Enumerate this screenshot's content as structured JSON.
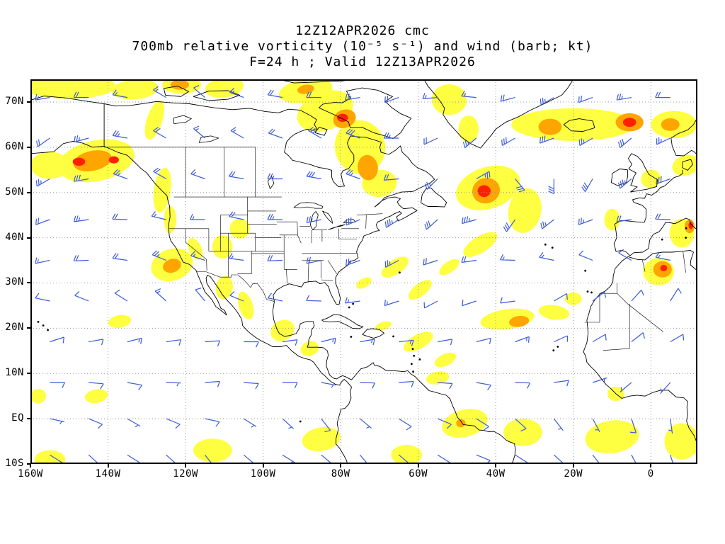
{
  "title": {
    "line1": "12Z12APR2026 cmc",
    "line2": "700mb relative vorticity (10⁻⁵ s⁻¹) and wind (barb; kt)",
    "line3": "F=24 h ; Valid 12Z13APR2026"
  },
  "axes": {
    "lat_ticks": [
      "70N",
      "60N",
      "50N",
      "40N",
      "30N",
      "20N",
      "10N",
      "EQ",
      "10S"
    ],
    "lat_values": [
      70,
      60,
      50,
      40,
      30,
      20,
      10,
      0,
      -10
    ],
    "lon_ticks": [
      "160W",
      "140W",
      "120W",
      "100W",
      "80W",
      "60W",
      "40W",
      "20W",
      "0"
    ],
    "lon_values": [
      -160,
      -140,
      -120,
      -100,
      -80,
      -60,
      -40,
      -20,
      0
    ]
  },
  "chart_data": {
    "type": "heatmap",
    "projection": "latlon",
    "lon_range": [
      -160,
      12
    ],
    "lat_range": [
      -10,
      75
    ],
    "model": "cmc",
    "init": "12Z12APR2026",
    "forecast": "F=24 h",
    "valid": "12Z13APR2026",
    "field": "700mb relative vorticity",
    "field_units": "10⁻⁵ s⁻¹",
    "wind": "barb",
    "wind_units": "kt",
    "grid_spacing_deg": {
      "lat": 10,
      "lon": 20
    },
    "colors": {
      "vort_low": "#FFFF42",
      "vort_mid": "#FFA500",
      "vort_high": "#FF2000",
      "barb": "#3A5BD9",
      "coast": "#000000",
      "grid": "#999999"
    },
    "vorticity_blobs": [
      [
        -150,
        73.5,
        12,
        2.8,
        0,
        "y"
      ],
      [
        -133,
        72.8,
        6,
        2.2,
        -5,
        "y"
      ],
      [
        -121,
        73.8,
        5,
        2,
        0,
        "y"
      ],
      [
        -110,
        73.2,
        5,
        2.2,
        -8,
        "y"
      ],
      [
        -89,
        72.5,
        7,
        2.6,
        -10,
        "y"
      ],
      [
        -143,
        57,
        10,
        4.5,
        -12,
        "y"
      ],
      [
        -155,
        56,
        5,
        3,
        0,
        "y"
      ],
      [
        -128,
        66,
        2,
        4.5,
        18,
        "y"
      ],
      [
        -126,
        50.5,
        2.2,
        5,
        8,
        "y"
      ],
      [
        -124,
        44,
        1.6,
        3,
        0,
        "y"
      ],
      [
        -123.5,
        34,
        5.5,
        3.5,
        -18,
        "y"
      ],
      [
        -117.5,
        37.5,
        1.6,
        2.6,
        -25,
        "y"
      ],
      [
        -106,
        42,
        2.6,
        2.2,
        0,
        "y"
      ],
      [
        -110.5,
        38,
        2.6,
        2.6,
        0,
        "y"
      ],
      [
        -110,
        29,
        2.2,
        2.6,
        10,
        "y"
      ],
      [
        -104.5,
        25,
        1.8,
        3.2,
        -18,
        "y"
      ],
      [
        -95,
        19.5,
        3.2,
        2.2,
        -28,
        "y"
      ],
      [
        -88,
        15.5,
        2.4,
        1.6,
        -20,
        "y"
      ],
      [
        -84,
        68,
        7.5,
        4.2,
        -22,
        "y"
      ],
      [
        -75,
        60,
        6.5,
        6,
        -18,
        "y"
      ],
      [
        -70,
        52,
        4.5,
        3,
        -5,
        "y"
      ],
      [
        -52,
        70.5,
        4.5,
        3.4,
        0,
        "y"
      ],
      [
        -47,
        64,
        2.6,
        3,
        0,
        "y"
      ],
      [
        -20,
        65,
        16,
        3.6,
        0,
        "y"
      ],
      [
        6,
        65,
        6,
        3,
        0,
        "y"
      ],
      [
        -42,
        51,
        8.5,
        4.6,
        -18,
        "y"
      ],
      [
        -32.5,
        46,
        4.2,
        5,
        12,
        "y"
      ],
      [
        -44,
        38.5,
        5,
        1.8,
        -32,
        "y"
      ],
      [
        -52,
        33.5,
        3,
        1.2,
        -35,
        "y"
      ],
      [
        -66,
        33.5,
        4,
        1.6,
        -33,
        "y"
      ],
      [
        -59.5,
        28.5,
        3.6,
        1.4,
        -38,
        "y"
      ],
      [
        -74,
        30,
        2.2,
        1,
        -30,
        "y"
      ],
      [
        -60,
        17,
        4.2,
        1.6,
        -28,
        "y"
      ],
      [
        -53,
        13,
        3,
        1.3,
        -25,
        "y"
      ],
      [
        -69,
        20.5,
        2.2,
        0.9,
        -18,
        "y"
      ],
      [
        -37,
        22,
        7,
        2.2,
        -8,
        "y"
      ],
      [
        -25,
        23.5,
        4,
        1.6,
        8,
        "y"
      ],
      [
        -20,
        26.5,
        2.2,
        1.4,
        0,
        "y"
      ],
      [
        8,
        41,
        3.2,
        3.2,
        0,
        "y"
      ],
      [
        2,
        32.5,
        4,
        3,
        0,
        "y"
      ],
      [
        9,
        56,
        3.6,
        2.2,
        -18,
        "y"
      ],
      [
        0,
        53,
        2.6,
        2,
        -15,
        "y"
      ],
      [
        -10,
        44,
        2,
        2.4,
        0,
        "y"
      ],
      [
        -137,
        21.5,
        3,
        1.4,
        -10,
        "y"
      ],
      [
        -158,
        5,
        2,
        1.6,
        0,
        "y"
      ],
      [
        -143,
        5,
        3,
        1.5,
        -10,
        "y"
      ],
      [
        -155,
        -9,
        4,
        2,
        0,
        "y"
      ],
      [
        -113,
        -7,
        5,
        2.6,
        0,
        "y"
      ],
      [
        -85,
        -4.5,
        5,
        2.6,
        -10,
        "y"
      ],
      [
        -63,
        -8,
        4,
        2.2,
        0,
        "y"
      ],
      [
        -48,
        -1,
        6,
        3,
        -14,
        "y"
      ],
      [
        -33,
        -3,
        5,
        3,
        0,
        "y"
      ],
      [
        -10,
        -4,
        7,
        3.6,
        -8,
        "y"
      ],
      [
        8,
        -5,
        4.5,
        4,
        0,
        "y"
      ],
      [
        -9,
        5.5,
        2.2,
        1.6,
        0,
        "y"
      ],
      [
        -55,
        9,
        3,
        1.4,
        -10,
        "y"
      ],
      [
        -144,
        57,
        5,
        2.2,
        -12,
        "o"
      ],
      [
        -121.5,
        73.8,
        2.4,
        1.1,
        0,
        "o"
      ],
      [
        -89,
        72.8,
        2.2,
        1,
        -10,
        "o"
      ],
      [
        -79,
        66.3,
        3,
        2,
        -20,
        "o"
      ],
      [
        -73,
        55.5,
        2.6,
        2.8,
        -8,
        "o"
      ],
      [
        -42.5,
        50.4,
        3.6,
        2.8,
        -18,
        "o"
      ],
      [
        -26,
        64.5,
        3,
        1.8,
        0,
        "o"
      ],
      [
        -5.5,
        65.5,
        3.6,
        2,
        0,
        "o"
      ],
      [
        5,
        65,
        2.4,
        1.4,
        0,
        "o"
      ],
      [
        3,
        33,
        2.4,
        1.8,
        0,
        "o"
      ],
      [
        -34,
        21.5,
        2.6,
        1.2,
        -8,
        "o"
      ],
      [
        -123.5,
        33.8,
        2.4,
        1.5,
        -18,
        "o"
      ],
      [
        -49,
        -1,
        1.2,
        0.9,
        0,
        "o"
      ],
      [
        10,
        42.5,
        1.3,
        1.5,
        0,
        "o"
      ],
      [
        -147.5,
        56.8,
        1.6,
        0.9,
        0,
        "r"
      ],
      [
        -138.5,
        57.2,
        1.3,
        0.8,
        0,
        "r"
      ],
      [
        -79.5,
        66.5,
        1.4,
        0.9,
        0,
        "r"
      ],
      [
        -43,
        50.3,
        1.7,
        1.3,
        0,
        "r"
      ],
      [
        -5.5,
        65.5,
        1.7,
        1,
        0,
        "r"
      ],
      [
        3.3,
        33.3,
        0.9,
        0.7,
        0,
        "r"
      ],
      [
        10.3,
        42.7,
        0.6,
        0.8,
        0,
        "r"
      ]
    ],
    "wind_barbs": [
      [
        -155,
        71,
        260,
        15
      ],
      [
        -145,
        71,
        270,
        20
      ],
      [
        -135,
        71,
        280,
        15
      ],
      [
        -125,
        71,
        300,
        15
      ],
      [
        -115,
        71,
        310,
        10
      ],
      [
        -105,
        71,
        290,
        15
      ],
      [
        -95,
        71,
        280,
        20
      ],
      [
        -85,
        71,
        270,
        20
      ],
      [
        -75,
        71,
        260,
        25
      ],
      [
        -65,
        71,
        250,
        20
      ],
      [
        -55,
        71,
        265,
        15
      ],
      [
        -45,
        71,
        275,
        15
      ],
      [
        -35,
        71,
        255,
        20
      ],
      [
        -25,
        71,
        240,
        25
      ],
      [
        -15,
        71,
        250,
        20
      ],
      [
        -5,
        71,
        260,
        25
      ],
      [
        5,
        71,
        270,
        20
      ],
      [
        -155,
        62,
        235,
        20
      ],
      [
        -145,
        62,
        255,
        25
      ],
      [
        -135,
        62,
        280,
        25
      ],
      [
        -125,
        62,
        300,
        20
      ],
      [
        -115,
        62,
        310,
        15
      ],
      [
        -105,
        62,
        300,
        15
      ],
      [
        -95,
        62,
        290,
        20
      ],
      [
        -85,
        62,
        300,
        25
      ],
      [
        -75,
        62,
        290,
        30
      ],
      [
        -65,
        62,
        270,
        25
      ],
      [
        -55,
        62,
        245,
        20
      ],
      [
        -45,
        62,
        230,
        25
      ],
      [
        -35,
        62,
        240,
        30
      ],
      [
        -25,
        62,
        250,
        30
      ],
      [
        -15,
        62,
        240,
        25
      ],
      [
        -5,
        62,
        230,
        30
      ],
      [
        5,
        62,
        245,
        25
      ],
      [
        -155,
        53,
        240,
        25
      ],
      [
        -145,
        53,
        260,
        30
      ],
      [
        -135,
        53,
        290,
        25
      ],
      [
        -125,
        53,
        300,
        20
      ],
      [
        -115,
        53,
        290,
        15
      ],
      [
        -105,
        53,
        280,
        20
      ],
      [
        -95,
        53,
        270,
        25
      ],
      [
        -85,
        53,
        280,
        30
      ],
      [
        -75,
        53,
        290,
        25
      ],
      [
        -65,
        53,
        265,
        20
      ],
      [
        -55,
        53,
        225,
        25
      ],
      [
        -45,
        53,
        60,
        25
      ],
      [
        -35,
        53,
        140,
        30
      ],
      [
        -25,
        53,
        180,
        30
      ],
      [
        -15,
        53,
        210,
        30
      ],
      [
        -5,
        53,
        230,
        35
      ],
      [
        5,
        53,
        250,
        30
      ],
      [
        -155,
        44,
        250,
        20
      ],
      [
        -145,
        44,
        262,
        25
      ],
      [
        -135,
        44,
        272,
        20
      ],
      [
        -125,
        44,
        283,
        15
      ],
      [
        -115,
        44,
        270,
        15
      ],
      [
        -105,
        44,
        282,
        20
      ],
      [
        -95,
        44,
        270,
        25
      ],
      [
        -85,
        44,
        258,
        25
      ],
      [
        -75,
        44,
        248,
        30
      ],
      [
        -65,
        44,
        238,
        35
      ],
      [
        -55,
        44,
        228,
        30
      ],
      [
        -45,
        44,
        255,
        35
      ],
      [
        -35,
        44,
        215,
        30
      ],
      [
        -25,
        44,
        232,
        25
      ],
      [
        -15,
        44,
        250,
        25
      ],
      [
        -5,
        44,
        262,
        20
      ],
      [
        5,
        44,
        272,
        20
      ],
      [
        -155,
        35,
        258,
        15
      ],
      [
        -145,
        35,
        268,
        20
      ],
      [
        -135,
        35,
        278,
        20
      ],
      [
        -125,
        35,
        292,
        25
      ],
      [
        -115,
        35,
        288,
        15
      ],
      [
        -105,
        35,
        278,
        15
      ],
      [
        -95,
        35,
        268,
        20
      ],
      [
        -85,
        35,
        258,
        20
      ],
      [
        -75,
        35,
        250,
        25
      ],
      [
        -65,
        35,
        242,
        25
      ],
      [
        -55,
        35,
        252,
        20
      ],
      [
        -45,
        35,
        262,
        20
      ],
      [
        -35,
        35,
        272,
        15
      ],
      [
        -25,
        35,
        282,
        15
      ],
      [
        -15,
        35,
        292,
        10
      ],
      [
        -5,
        35,
        300,
        10
      ],
      [
        5,
        35,
        282,
        15
      ],
      [
        -155,
        26,
        282,
        10
      ],
      [
        -145,
        26,
        292,
        10
      ],
      [
        -135,
        26,
        302,
        10
      ],
      [
        -125,
        26,
        312,
        15
      ],
      [
        -115,
        26,
        320,
        10
      ],
      [
        -105,
        26,
        292,
        10
      ],
      [
        -95,
        26,
        282,
        10
      ],
      [
        -85,
        26,
        272,
        10
      ],
      [
        -75,
        26,
        262,
        15
      ],
      [
        -65,
        26,
        252,
        15
      ],
      [
        -55,
        26,
        242,
        10
      ],
      [
        -45,
        26,
        252,
        10
      ],
      [
        -35,
        26,
        262,
        10
      ],
      [
        -25,
        26,
        60,
        10
      ],
      [
        -15,
        26,
        52,
        10
      ],
      [
        -5,
        26,
        42,
        10
      ],
      [
        5,
        26,
        32,
        10
      ],
      [
        -155,
        17,
        72,
        10
      ],
      [
        -145,
        17,
        80,
        10
      ],
      [
        -135,
        17,
        76,
        15
      ],
      [
        -125,
        17,
        82,
        10
      ],
      [
        -115,
        17,
        86,
        10
      ],
      [
        -105,
        17,
        90,
        10
      ],
      [
        -95,
        17,
        82,
        10
      ],
      [
        -85,
        17,
        76,
        15
      ],
      [
        -75,
        17,
        80,
        15
      ],
      [
        -65,
        17,
        84,
        15
      ],
      [
        -55,
        17,
        80,
        10
      ],
      [
        -45,
        17,
        76,
        10
      ],
      [
        -35,
        17,
        70,
        15
      ],
      [
        -25,
        17,
        66,
        10
      ],
      [
        -15,
        17,
        60,
        10
      ],
      [
        -5,
        17,
        52,
        10
      ],
      [
        5,
        17,
        60,
        10
      ],
      [
        -155,
        8,
        90,
        10
      ],
      [
        -145,
        8,
        95,
        10
      ],
      [
        -135,
        8,
        100,
        10
      ],
      [
        -125,
        8,
        92,
        5
      ],
      [
        -115,
        8,
        86,
        10
      ],
      [
        -105,
        8,
        94,
        10
      ],
      [
        -95,
        8,
        90,
        10
      ],
      [
        -85,
        8,
        100,
        5
      ],
      [
        -75,
        8,
        92,
        10
      ],
      [
        -65,
        8,
        86,
        10
      ],
      [
        -55,
        8,
        94,
        10
      ],
      [
        -45,
        8,
        100,
        10
      ],
      [
        -35,
        8,
        92,
        10
      ],
      [
        -25,
        8,
        82,
        10
      ],
      [
        -15,
        8,
        72,
        5
      ],
      [
        -5,
        8,
        230,
        5
      ],
      [
        5,
        8,
        222,
        5
      ],
      [
        -155,
        0,
        102,
        5
      ],
      [
        -145,
        0,
        112,
        10
      ],
      [
        -135,
        0,
        120,
        5
      ],
      [
        -125,
        0,
        112,
        10
      ],
      [
        -115,
        0,
        102,
        10
      ],
      [
        -105,
        0,
        122,
        5
      ],
      [
        -95,
        0,
        132,
        5
      ],
      [
        -85,
        0,
        142,
        10
      ],
      [
        -75,
        0,
        130,
        5
      ],
      [
        -65,
        0,
        122,
        10
      ],
      [
        -55,
        0,
        112,
        10
      ],
      [
        -45,
        0,
        122,
        10
      ],
      [
        -35,
        0,
        132,
        10
      ],
      [
        -25,
        0,
        142,
        5
      ],
      [
        -15,
        0,
        152,
        5
      ],
      [
        -5,
        0,
        162,
        10
      ],
      [
        5,
        0,
        172,
        5
      ],
      [
        -155,
        -8,
        122,
        10
      ],
      [
        -145,
        -8,
        132,
        10
      ],
      [
        -135,
        -8,
        122,
        10
      ],
      [
        -125,
        -8,
        132,
        10
      ],
      [
        -115,
        -8,
        142,
        10
      ],
      [
        -105,
        -8,
        130,
        10
      ],
      [
        -95,
        -8,
        122,
        15
      ],
      [
        -85,
        -8,
        130,
        10
      ],
      [
        -75,
        -8,
        140,
        5
      ],
      [
        -65,
        -8,
        130,
        10
      ],
      [
        -55,
        -8,
        122,
        10
      ],
      [
        -45,
        -8,
        112,
        10
      ],
      [
        -35,
        -8,
        122,
        10
      ],
      [
        -25,
        -8,
        132,
        10
      ],
      [
        -15,
        -8,
        142,
        10
      ],
      [
        -5,
        -8,
        152,
        10
      ],
      [
        5,
        -8,
        162,
        10
      ]
    ]
  }
}
